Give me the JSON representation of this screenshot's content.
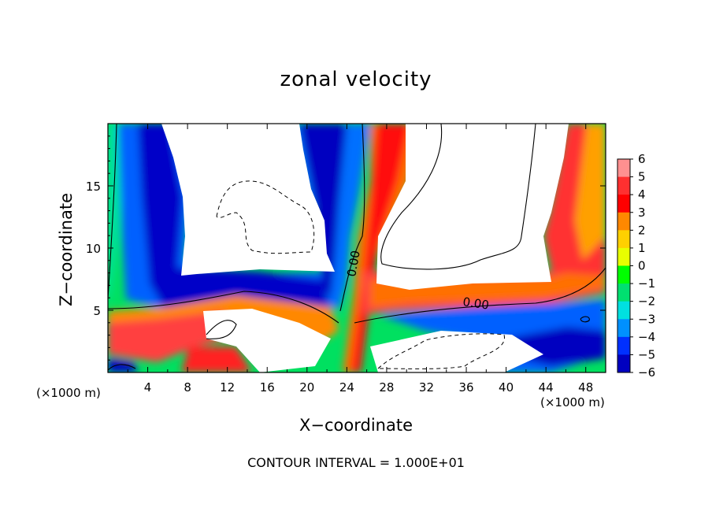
{
  "chart_data": {
    "type": "heatmap",
    "title": "zonal velocity",
    "xlabel": "X−coordinate",
    "ylabel": "Z−coordinate",
    "x_unit_left": "(×1000 m)",
    "x_unit_right": "(×1000 m)",
    "xlim": [
      0,
      50
    ],
    "ylim": [
      0,
      20
    ],
    "x_ticks": [
      4,
      8,
      12,
      16,
      20,
      24,
      28,
      32,
      36,
      40,
      44,
      48
    ],
    "y_ticks": [
      5,
      10,
      15
    ],
    "x_tick_labels": [
      "4",
      "8",
      "12",
      "16",
      "20",
      "24",
      "28",
      "32",
      "36",
      "40",
      "44",
      "48"
    ],
    "y_tick_labels": [
      "5",
      "10",
      "15"
    ],
    "colorbar": {
      "levels": [
        6,
        5,
        4,
        3,
        2,
        1,
        0,
        -1,
        -2,
        -3,
        -4,
        -5,
        -6
      ],
      "labels": [
        "6",
        "5",
        "4",
        "3",
        "2",
        "1",
        "0",
        "−1",
        "−2",
        "−3",
        "−4",
        "−5",
        "−6"
      ],
      "colors": [
        "#ff9090",
        "#ff3030",
        "#ff0000",
        "#ff8800",
        "#ffd000",
        "#e8ff00",
        "#00ff00",
        "#00e070",
        "#00e0e0",
        "#0090ff",
        "#0030ff",
        "#0000c0",
        "#7800b0"
      ]
    },
    "contour_labels": [
      "0.00",
      "0.00"
    ],
    "contour_interval": "CONTOUR INTERVAL = 1.000E+01"
  }
}
